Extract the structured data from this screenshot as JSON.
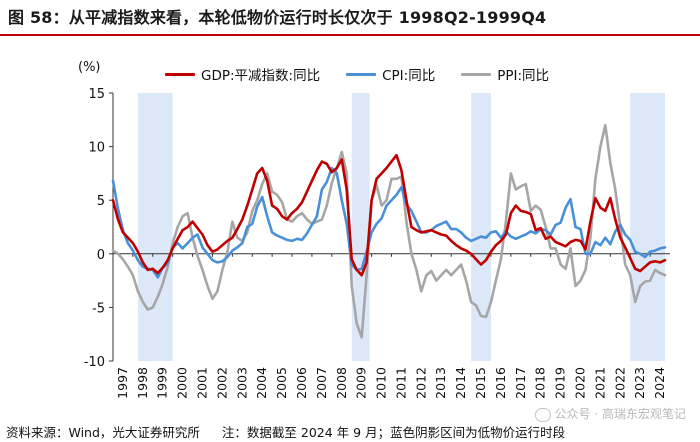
{
  "title": "图 58：从平减指数来看，本轮低物价运行时长仅次于 1998Q2-1999Q4",
  "footer": {
    "source": "资料来源：Wind，光大证券研究所",
    "note": "注：数据截至 2024 年 9 月；蓝色阴影区间为低物价运行时段"
  },
  "watermark": "公众号 · 高瑞东宏观笔记",
  "colors": {
    "gdp": "#c00000",
    "cpi": "#4a90d9",
    "ppi": "#a6a6a6",
    "shade": "#dce8f7",
    "title_rule": "#c00000"
  },
  "chart_data": {
    "type": "line",
    "unit_label": "(%)",
    "ylim": [
      -10,
      15
    ],
    "yticks": [
      -10,
      -5,
      0,
      5,
      10,
      15
    ],
    "xlim": [
      1997.0,
      2025.0
    ],
    "xtick_labels": [
      "1997",
      "1998",
      "1999",
      "2000",
      "2001",
      "2002",
      "2003",
      "2004",
      "2005",
      "2006",
      "2007",
      "2008",
      "2009",
      "2010",
      "2011",
      "2012",
      "2013",
      "2014",
      "2015",
      "2016",
      "2017",
      "2018",
      "2019",
      "2020",
      "2021",
      "2022",
      "2023",
      "2024"
    ],
    "shaded_periods": [
      [
        1998.25,
        2000.0
      ],
      [
        2009.0,
        2009.9
      ],
      [
        2015.0,
        2016.0
      ],
      [
        2023.0,
        2024.75
      ]
    ],
    "series": [
      {
        "name": "GDP:平减指数:同比",
        "key": "gdp",
        "x": [
          1997.0,
          1997.25,
          1997.5,
          1997.75,
          1998.0,
          1998.25,
          1998.5,
          1998.75,
          1999.0,
          1999.25,
          1999.5,
          1999.75,
          2000.0,
          2000.25,
          2000.5,
          2000.75,
          2001.0,
          2001.25,
          2001.5,
          2001.75,
          2002.0,
          2002.25,
          2002.5,
          2002.75,
          2003.0,
          2003.25,
          2003.5,
          2003.75,
          2004.0,
          2004.25,
          2004.5,
          2004.75,
          2005.0,
          2005.25,
          2005.5,
          2005.75,
          2006.0,
          2006.25,
          2006.5,
          2006.75,
          2007.0,
          2007.25,
          2007.5,
          2007.75,
          2008.0,
          2008.25,
          2008.5,
          2008.75,
          2009.0,
          2009.25,
          2009.5,
          2009.75,
          2010.0,
          2010.25,
          2010.5,
          2010.75,
          2011.0,
          2011.25,
          2011.5,
          2011.75,
          2012.0,
          2012.25,
          2012.5,
          2012.75,
          2013.0,
          2013.25,
          2013.5,
          2013.75,
          2014.0,
          2014.25,
          2014.5,
          2014.75,
          2015.0,
          2015.25,
          2015.5,
          2015.75,
          2016.0,
          2016.25,
          2016.5,
          2016.75,
          2017.0,
          2017.25,
          2017.5,
          2017.75,
          2018.0,
          2018.25,
          2018.5,
          2018.75,
          2019.0,
          2019.25,
          2019.5,
          2019.75,
          2020.0,
          2020.25,
          2020.5,
          2020.75,
          2021.0,
          2021.25,
          2021.5,
          2021.75,
          2022.0,
          2022.25,
          2022.5,
          2022.75,
          2023.0,
          2023.25,
          2023.5,
          2023.75,
          2024.0,
          2024.25,
          2024.5,
          2024.75
        ],
        "values": [
          5.0,
          3.2,
          2.0,
          1.5,
          1.0,
          0.2,
          -0.8,
          -1.5,
          -1.4,
          -1.8,
          -1.3,
          -0.6,
          0.5,
          1.4,
          2.2,
          2.5,
          3.0,
          2.4,
          1.8,
          0.8,
          0.2,
          0.4,
          0.8,
          1.2,
          1.5,
          2.3,
          3.2,
          4.5,
          6.0,
          7.5,
          8.0,
          6.8,
          4.5,
          4.2,
          3.5,
          3.2,
          3.8,
          4.2,
          4.8,
          5.8,
          6.8,
          7.8,
          8.6,
          8.4,
          7.6,
          8.0,
          8.8,
          6.0,
          -0.5,
          -1.5,
          -2.0,
          -0.8,
          5.0,
          7.0,
          7.5,
          8.0,
          8.6,
          9.2,
          7.8,
          5.0,
          2.5,
          2.2,
          2.0,
          2.1,
          2.2,
          2.0,
          1.8,
          1.7,
          1.2,
          0.8,
          0.5,
          0.3,
          0.0,
          -0.5,
          -1.0,
          -0.6,
          0.2,
          0.8,
          1.2,
          1.8,
          3.8,
          4.5,
          4.0,
          3.9,
          3.7,
          2.2,
          2.4,
          1.4,
          1.6,
          1.1,
          0.9,
          0.7,
          1.1,
          1.3,
          1.2,
          0.4,
          3.0,
          5.2,
          4.3,
          4.0,
          5.2,
          3.2,
          1.5,
          0.6,
          -0.4,
          -1.4,
          -1.6,
          -1.2,
          -0.8,
          -0.7,
          -0.8,
          -0.6
        ]
      },
      {
        "name": "CPI:同比",
        "key": "cpi",
        "x": [
          1997.0,
          1997.25,
          1997.5,
          1997.75,
          1998.0,
          1998.25,
          1998.5,
          1998.75,
          1999.0,
          1999.25,
          1999.5,
          1999.75,
          2000.0,
          2000.25,
          2000.5,
          2000.75,
          2001.0,
          2001.25,
          2001.5,
          2001.75,
          2002.0,
          2002.25,
          2002.5,
          2002.75,
          2003.0,
          2003.25,
          2003.5,
          2003.75,
          2004.0,
          2004.25,
          2004.5,
          2004.75,
          2005.0,
          2005.25,
          2005.5,
          2005.75,
          2006.0,
          2006.25,
          2006.5,
          2006.75,
          2007.0,
          2007.25,
          2007.5,
          2007.75,
          2008.0,
          2008.25,
          2008.5,
          2008.75,
          2009.0,
          2009.25,
          2009.5,
          2009.75,
          2010.0,
          2010.25,
          2010.5,
          2010.75,
          2011.0,
          2011.25,
          2011.5,
          2011.75,
          2012.0,
          2012.25,
          2012.5,
          2012.75,
          2013.0,
          2013.25,
          2013.5,
          2013.75,
          2014.0,
          2014.25,
          2014.5,
          2014.75,
          2015.0,
          2015.25,
          2015.5,
          2015.75,
          2016.0,
          2016.25,
          2016.5,
          2016.75,
          2017.0,
          2017.25,
          2017.5,
          2017.75,
          2018.0,
          2018.25,
          2018.5,
          2018.75,
          2019.0,
          2019.25,
          2019.5,
          2019.75,
          2020.0,
          2020.25,
          2020.5,
          2020.75,
          2021.0,
          2021.25,
          2021.5,
          2021.75,
          2022.0,
          2022.25,
          2022.5,
          2022.75,
          2023.0,
          2023.25,
          2023.5,
          2023.75,
          2024.0,
          2024.25,
          2024.5,
          2024.75
        ],
        "values": [
          6.8,
          4.2,
          2.2,
          1.0,
          0.3,
          -0.6,
          -1.2,
          -1.4,
          -1.5,
          -2.2,
          -1.3,
          -0.9,
          0.6,
          1.0,
          0.5,
          1.0,
          1.5,
          1.8,
          0.6,
          0.0,
          -0.6,
          -0.8,
          -0.7,
          -0.3,
          0.3,
          0.6,
          1.0,
          2.5,
          2.8,
          4.4,
          5.3,
          3.5,
          2.0,
          1.7,
          1.5,
          1.3,
          1.2,
          1.4,
          1.3,
          1.9,
          2.7,
          3.5,
          6.0,
          6.7,
          8.0,
          7.5,
          5.0,
          2.8,
          -1.0,
          -1.5,
          -1.4,
          0.2,
          2.0,
          2.8,
          3.3,
          4.5,
          5.0,
          5.5,
          6.2,
          4.6,
          4.0,
          3.0,
          2.0,
          2.0,
          2.2,
          2.6,
          2.8,
          3.0,
          2.3,
          2.3,
          2.0,
          1.5,
          1.2,
          1.4,
          1.6,
          1.5,
          2.0,
          2.1,
          1.5,
          2.1,
          1.6,
          1.4,
          1.6,
          1.8,
          2.1,
          1.9,
          2.3,
          2.2,
          1.8,
          2.7,
          2.9,
          4.3,
          5.1,
          2.5,
          2.3,
          0.0,
          0.0,
          1.1,
          0.8,
          1.5,
          0.9,
          2.1,
          2.7,
          1.8,
          1.3,
          0.2,
          0.0,
          -0.3,
          0.2,
          0.3,
          0.5,
          0.6
        ]
      },
      {
        "name": "PPI:同比",
        "key": "ppi",
        "x": [
          1997.0,
          1997.25,
          1997.5,
          1997.75,
          1998.0,
          1998.25,
          1998.5,
          1998.75,
          1999.0,
          1999.25,
          1999.5,
          1999.75,
          2000.0,
          2000.25,
          2000.5,
          2000.75,
          2001.0,
          2001.25,
          2001.5,
          2001.75,
          2002.0,
          2002.25,
          2002.5,
          2002.75,
          2003.0,
          2003.25,
          2003.5,
          2003.75,
          2004.0,
          2004.25,
          2004.5,
          2004.75,
          2005.0,
          2005.25,
          2005.5,
          2005.75,
          2006.0,
          2006.25,
          2006.5,
          2006.75,
          2007.0,
          2007.25,
          2007.5,
          2007.75,
          2008.0,
          2008.25,
          2008.5,
          2008.75,
          2009.0,
          2009.25,
          2009.5,
          2009.75,
          2010.0,
          2010.25,
          2010.5,
          2010.75,
          2011.0,
          2011.25,
          2011.5,
          2011.75,
          2012.0,
          2012.25,
          2012.5,
          2012.75,
          2013.0,
          2013.25,
          2013.5,
          2013.75,
          2014.0,
          2014.25,
          2014.5,
          2014.75,
          2015.0,
          2015.25,
          2015.5,
          2015.75,
          2016.0,
          2016.25,
          2016.5,
          2016.75,
          2017.0,
          2017.25,
          2017.5,
          2017.75,
          2018.0,
          2018.25,
          2018.5,
          2018.75,
          2019.0,
          2019.25,
          2019.5,
          2019.75,
          2020.0,
          2020.25,
          2020.5,
          2020.75,
          2021.0,
          2021.25,
          2021.5,
          2021.75,
          2022.0,
          2022.25,
          2022.5,
          2022.75,
          2023.0,
          2023.25,
          2023.5,
          2023.75,
          2024.0,
          2024.25,
          2024.5,
          2024.75
        ],
        "values": [
          0.3,
          0.0,
          -0.5,
          -1.2,
          -2.0,
          -3.5,
          -4.5,
          -5.2,
          -5.0,
          -4.0,
          -2.8,
          -1.2,
          1.0,
          2.5,
          3.5,
          3.8,
          1.5,
          -0.2,
          -1.5,
          -3.0,
          -4.2,
          -3.5,
          -1.5,
          0.2,
          3.0,
          1.5,
          1.2,
          2.0,
          4.0,
          5.0,
          6.5,
          7.5,
          5.8,
          5.5,
          4.8,
          3.2,
          3.0,
          3.5,
          3.8,
          3.2,
          2.8,
          3.0,
          3.2,
          4.5,
          6.6,
          8.0,
          9.5,
          7.5,
          -3.0,
          -6.5,
          -7.8,
          -2.0,
          5.0,
          6.4,
          4.5,
          5.0,
          7.0,
          7.0,
          7.2,
          3.0,
          0.0,
          -1.5,
          -3.5,
          -2.0,
          -1.6,
          -2.5,
          -2.0,
          -1.5,
          -2.0,
          -1.5,
          -1.0,
          -2.5,
          -4.5,
          -4.8,
          -5.8,
          -5.9,
          -4.5,
          -2.5,
          -0.5,
          3.0,
          7.5,
          6.0,
          6.3,
          6.5,
          4.0,
          4.5,
          4.1,
          2.5,
          0.5,
          0.5,
          -1.0,
          -1.4,
          0.5,
          -3.0,
          -2.5,
          -1.5,
          1.5,
          7.0,
          10.0,
          12.0,
          8.5,
          6.0,
          2.5,
          -1.0,
          -2.0,
          -4.5,
          -3.0,
          -2.6,
          -2.5,
          -1.5,
          -1.8,
          -2.0
        ]
      }
    ]
  }
}
